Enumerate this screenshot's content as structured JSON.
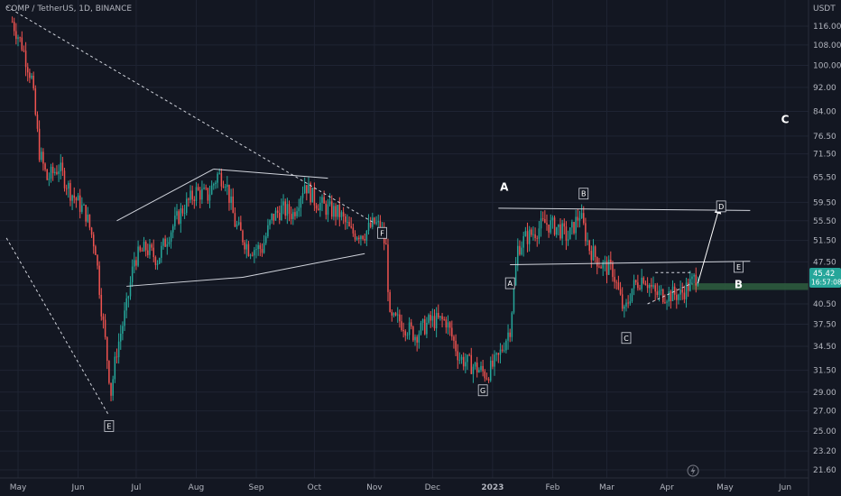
{
  "header": {
    "symbol_line": "COMP / TetherUS, 1D, BINANCE"
  },
  "axis": {
    "currency": "USDT"
  },
  "price_badge": {
    "price": "45.42",
    "countdown": "16:57:08",
    "color": "#26a69a"
  },
  "colors": {
    "up": "#26a69a",
    "down": "#ef5350",
    "background": "#131722",
    "grid": "#1f2433",
    "lines": "#d1d4dc"
  },
  "icon": "lightning-icon",
  "chart_data": {
    "type": "candlestick",
    "title": "COMP / TetherUS, 1D, BINANCE",
    "y_unit": "USDT",
    "y_scale": "log",
    "ylim": [
      20.5,
      125
    ],
    "grid": true,
    "y_ticks": [
      "116.00",
      "108.00",
      "100.00",
      "92.00",
      "84.00",
      "76.50",
      "71.50",
      "65.50",
      "59.50",
      "55.50",
      "51.50",
      "47.50",
      "43.50",
      "40.50",
      "37.50",
      "34.50",
      "31.50",
      "29.00",
      "27.00",
      "25.00",
      "23.20",
      "21.60"
    ],
    "x_ticks": [
      "May",
      "Jun",
      "Jul",
      "Aug",
      "Sep",
      "Oct",
      "Nov",
      "Dec",
      "2023",
      "Feb",
      "Mar",
      "Apr",
      "May",
      "Jun"
    ],
    "x_tick_dates": [
      "2022-05-01",
      "2022-06-01",
      "2022-07-01",
      "2022-08-01",
      "2022-09-01",
      "2022-10-01",
      "2022-11-01",
      "2022-12-01",
      "2023-01-01",
      "2023-02-01",
      "2023-03-01",
      "2023-04-01",
      "2023-05-01",
      "2023-06-01"
    ],
    "price_path": [
      [
        "2022-04-28",
        118
      ],
      [
        "2022-05-03",
        108
      ],
      [
        "2022-05-08",
        95
      ],
      [
        "2022-05-12",
        72
      ],
      [
        "2022-05-16",
        65
      ],
      [
        "2022-05-22",
        68
      ],
      [
        "2022-05-28",
        62
      ],
      [
        "2022-06-05",
        57
      ],
      [
        "2022-06-10",
        50
      ],
      [
        "2022-06-13",
        40
      ],
      [
        "2022-06-18",
        29
      ],
      [
        "2022-06-21",
        34
      ],
      [
        "2022-06-26",
        40
      ],
      [
        "2022-06-30",
        48
      ],
      [
        "2022-07-06",
        50
      ],
      [
        "2022-07-12",
        48
      ],
      [
        "2022-07-18",
        53
      ],
      [
        "2022-07-25",
        58
      ],
      [
        "2022-08-01",
        62
      ],
      [
        "2022-08-07",
        61
      ],
      [
        "2022-08-12",
        66
      ],
      [
        "2022-08-16",
        65
      ],
      [
        "2022-08-21",
        55
      ],
      [
        "2022-08-28",
        50
      ],
      [
        "2022-09-04",
        50
      ],
      [
        "2022-09-09",
        56
      ],
      [
        "2022-09-14",
        58
      ],
      [
        "2022-09-20",
        57
      ],
      [
        "2022-09-26",
        64
      ],
      [
        "2022-10-01",
        60
      ],
      [
        "2022-10-08",
        58
      ],
      [
        "2022-10-14",
        57
      ],
      [
        "2022-10-20",
        53
      ],
      [
        "2022-10-27",
        53
      ],
      [
        "2022-11-01",
        55
      ],
      [
        "2022-11-04",
        54
      ],
      [
        "2022-11-07",
        50
      ],
      [
        "2022-11-09",
        38
      ],
      [
        "2022-11-14",
        38
      ],
      [
        "2022-11-22",
        36
      ],
      [
        "2022-11-30",
        38
      ],
      [
        "2022-12-08",
        38
      ],
      [
        "2022-12-15",
        33
      ],
      [
        "2022-12-22",
        32
      ],
      [
        "2022-12-29",
        31
      ],
      [
        "2023-01-04",
        33
      ],
      [
        "2023-01-10",
        37
      ],
      [
        "2023-01-14",
        50
      ],
      [
        "2023-01-18",
        52
      ],
      [
        "2023-01-22",
        53
      ],
      [
        "2023-01-28",
        55
      ],
      [
        "2023-02-04",
        54
      ],
      [
        "2023-02-09",
        52
      ],
      [
        "2023-02-15",
        57
      ],
      [
        "2023-02-20",
        50
      ],
      [
        "2023-02-26",
        47
      ],
      [
        "2023-03-04",
        46
      ],
      [
        "2023-03-10",
        39
      ],
      [
        "2023-03-14",
        43
      ],
      [
        "2023-03-20",
        45
      ],
      [
        "2023-03-26",
        42
      ],
      [
        "2023-04-02",
        42
      ],
      [
        "2023-04-08",
        42
      ],
      [
        "2023-04-14",
        44
      ],
      [
        "2023-04-17",
        45.42
      ]
    ],
    "annotations": [
      {
        "text": "E",
        "date": "2022-06-17",
        "price": 25.5,
        "style": "boxed"
      },
      {
        "text": "F",
        "date": "2022-11-05",
        "price": 53,
        "style": "boxed"
      },
      {
        "text": "G",
        "date": "2022-12-27",
        "price": 29.2,
        "style": "boxed"
      },
      {
        "text": "A",
        "date": "2023-01-07",
        "price": 63,
        "style": "big"
      },
      {
        "text": "A",
        "date": "2023-01-10",
        "price": 43.8,
        "style": "boxed"
      },
      {
        "text": "B",
        "date": "2023-02-17",
        "price": 61.5,
        "style": "boxed"
      },
      {
        "text": "C",
        "date": "2023-03-11",
        "price": 35.6,
        "style": "boxed"
      },
      {
        "text": "D",
        "date": "2023-04-29",
        "price": 58.6,
        "style": "boxed"
      },
      {
        "text": "E",
        "date": "2023-05-08",
        "price": 46.6,
        "style": "boxed"
      },
      {
        "text": "B",
        "date": "2023-05-08",
        "price": 43.6,
        "style": "big"
      },
      {
        "text": "C",
        "date": "2023-06-01",
        "price": 81.5,
        "style": "big"
      }
    ],
    "drawings": [
      {
        "kind": "dashed",
        "points": [
          [
            "2022-04-25",
            125
          ],
          [
            "2022-11-01",
            55
          ]
        ]
      },
      {
        "kind": "dashed",
        "points": [
          [
            "2022-04-25",
            52
          ],
          [
            "2022-06-17",
            26.5
          ]
        ]
      },
      {
        "kind": "solid",
        "points": [
          [
            "2022-06-21",
            55.5
          ],
          [
            "2022-08-10",
            67.5
          ]
        ]
      },
      {
        "kind": "solid",
        "points": [
          [
            "2022-08-10",
            67.5
          ],
          [
            "2022-10-08",
            65.2
          ]
        ]
      },
      {
        "kind": "solid",
        "points": [
          [
            "2022-06-26",
            43.3
          ],
          [
            "2022-08-25",
            44.8
          ]
        ]
      },
      {
        "kind": "solid",
        "points": [
          [
            "2022-08-25",
            44.8
          ],
          [
            "2022-10-27",
            49
          ]
        ]
      },
      {
        "kind": "solid",
        "points": [
          [
            "2023-01-04",
            58.2
          ],
          [
            "2023-05-14",
            57.7
          ]
        ]
      },
      {
        "kind": "solid",
        "points": [
          [
            "2023-01-10",
            47
          ],
          [
            "2023-05-14",
            47.6
          ]
        ]
      },
      {
        "kind": "dashed",
        "points": [
          [
            "2023-03-26",
            45.6
          ],
          [
            "2023-04-14",
            45.6
          ]
        ]
      },
      {
        "kind": "dashed",
        "points": [
          [
            "2023-03-22",
            40.5
          ],
          [
            "2023-04-14",
            43.8
          ]
        ]
      },
      {
        "kind": "arrow",
        "points": [
          [
            "2023-04-17",
            43.8
          ],
          [
            "2023-04-28",
            58.2
          ]
        ]
      }
    ],
    "highlight_band": {
      "from_date": "2023-04-14",
      "y_low": 42.7,
      "y_high": 43.8,
      "color": "#2e5e3e"
    }
  }
}
